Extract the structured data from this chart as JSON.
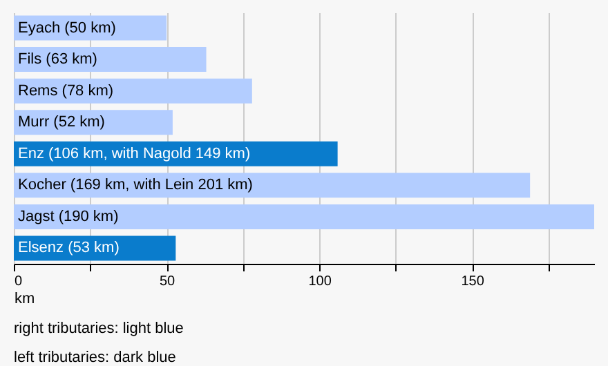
{
  "chart_data": {
    "type": "bar",
    "orientation": "horizontal",
    "xlabel": "km",
    "categories": [
      "Eyach (50 km)",
      "Fils (63 km)",
      "Rems (78 km)",
      "Murr (52 km)",
      "Enz (106 km, with Nagold 149 km)",
      "Kocher (169 km, with Lein 201 km)",
      "Jagst (190 km)",
      "Elsenz (53 km)"
    ],
    "values": [
      50,
      63,
      78,
      52,
      106,
      169,
      190,
      53
    ],
    "colors": [
      "#b3cdff",
      "#b3cdff",
      "#b3cdff",
      "#b3cdff",
      "#0a7ccc",
      "#b3cdff",
      "#b3cdff",
      "#0a7ccc"
    ],
    "xlim": [
      0,
      190
    ],
    "xticks": [
      0,
      {
        "value": 25,
        "label": null
      },
      50,
      {
        "value": 75,
        "label": null
      },
      100,
      {
        "value": 125,
        "label": null
      },
      150,
      {
        "value": 175,
        "label": null
      }
    ],
    "grid": "x",
    "annotations": [
      "right tributaries: light blue",
      "left tributaries: dark blue"
    ]
  }
}
